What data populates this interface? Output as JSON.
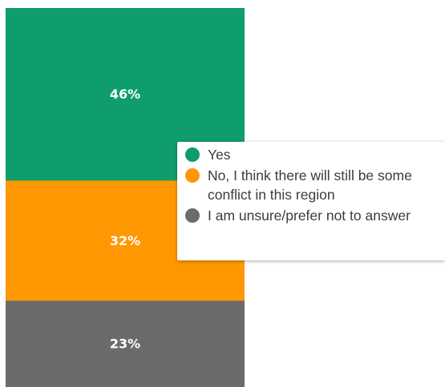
{
  "chart_data": {
    "type": "bar",
    "stacked": true,
    "orientation": "vertical",
    "series": [
      {
        "name": "Yes",
        "value": 46,
        "label": "46%",
        "color": "#0f9d6b"
      },
      {
        "name": "No, I think there will still be some conflict in this region",
        "value": 32,
        "label": "32%",
        "color": "#ff9800"
      },
      {
        "name": "I am unsure/prefer not to answer",
        "value": 23,
        "label": "23%",
        "color": "#6b6b6b"
      }
    ],
    "legend_position": "right"
  }
}
